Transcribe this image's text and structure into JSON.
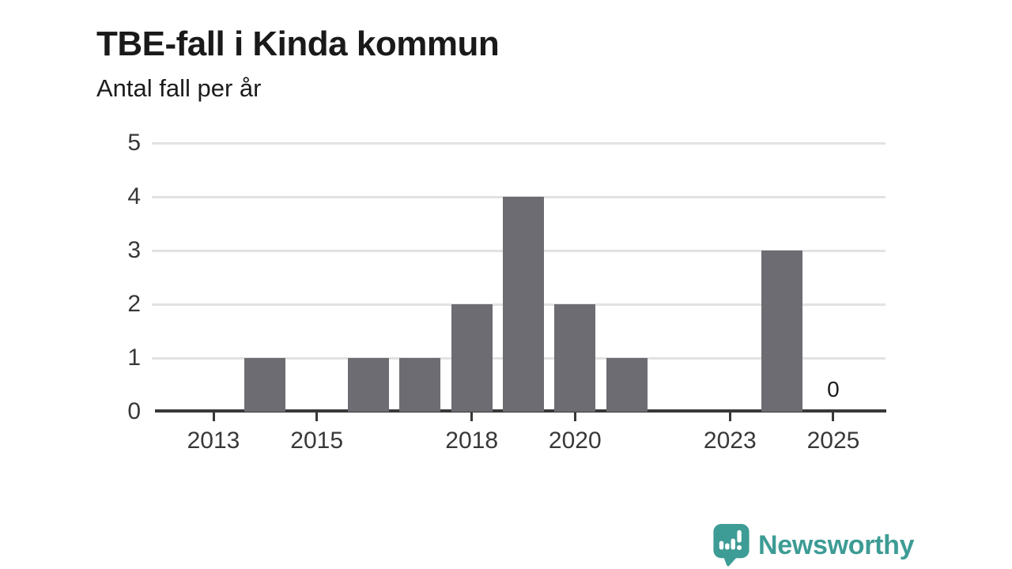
{
  "chart_data": {
    "type": "bar",
    "title": "TBE-fall i Kinda kommun",
    "subtitle": "Antal fall per år",
    "categories": [
      2013,
      2014,
      2015,
      2016,
      2017,
      2018,
      2019,
      2020,
      2021,
      2022,
      2023,
      2024,
      2025
    ],
    "values": [
      0,
      1,
      0,
      1,
      1,
      2,
      4,
      2,
      1,
      0,
      0,
      3,
      0
    ],
    "xlabel": "",
    "ylabel": "Antal fall per år",
    "ylim": [
      0,
      5
    ],
    "yticks": [
      0,
      1,
      2,
      3,
      4,
      5
    ],
    "xticks": [
      2013,
      2015,
      2018,
      2020,
      2023,
      2025
    ],
    "grid": true,
    "legend_position": "none",
    "annotations": [
      {
        "category": 2025,
        "text": "0"
      }
    ]
  },
  "branding": {
    "wordmark": "Newsworthy",
    "icon": "newsworthy-speech-bubble-bar-chart-icon"
  },
  "colors": {
    "background": "#ffffff",
    "title": "#1a1a1a",
    "axis_text": "#383838",
    "axis_line": "#383838",
    "gridline": "#e2e2e2",
    "bar": "#6d6c72",
    "brand_teal": "#3d9c95"
  }
}
